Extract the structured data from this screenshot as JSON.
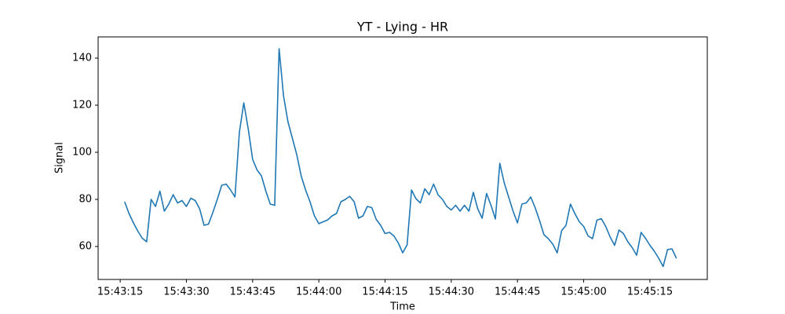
{
  "chart_data": {
    "type": "line",
    "title": "YT - Lying - HR",
    "x_label": "Time",
    "y_label": "Signal",
    "x": [
      "15:43:16",
      "15:43:17",
      "15:43:18",
      "15:43:19",
      "15:43:20",
      "15:43:21",
      "15:43:22",
      "15:43:23",
      "15:43:24",
      "15:43:25",
      "15:43:26",
      "15:43:27",
      "15:43:28",
      "15:43:29",
      "15:43:30",
      "15:43:31",
      "15:43:32",
      "15:43:33",
      "15:43:34",
      "15:43:35",
      "15:43:36",
      "15:43:37",
      "15:43:38",
      "15:43:39",
      "15:43:40",
      "15:43:41",
      "15:43:42",
      "15:43:43",
      "15:43:44",
      "15:43:45",
      "15:43:46",
      "15:43:47",
      "15:43:48",
      "15:43:49",
      "15:43:50",
      "15:43:51",
      "15:43:52",
      "15:43:53",
      "15:43:54",
      "15:43:55",
      "15:43:56",
      "15:43:57",
      "15:43:58",
      "15:43:59",
      "15:44:00",
      "15:44:01",
      "15:44:02",
      "15:44:03",
      "15:44:04",
      "15:44:05",
      "15:44:06",
      "15:44:07",
      "15:44:08",
      "15:44:09",
      "15:44:10",
      "15:44:11",
      "15:44:12",
      "15:44:13",
      "15:44:14",
      "15:44:15",
      "15:44:16",
      "15:44:17",
      "15:44:18",
      "15:44:19",
      "15:44:20",
      "15:44:21",
      "15:44:22",
      "15:44:23",
      "15:44:24",
      "15:44:25",
      "15:44:26",
      "15:44:27",
      "15:44:28",
      "15:44:29",
      "15:44:30",
      "15:44:31",
      "15:44:32",
      "15:44:33",
      "15:44:34",
      "15:44:35",
      "15:44:36",
      "15:44:37",
      "15:44:38",
      "15:44:39",
      "15:44:40",
      "15:44:41",
      "15:44:42",
      "15:44:43",
      "15:44:44",
      "15:44:45",
      "15:44:46",
      "15:44:47",
      "15:44:48",
      "15:44:49",
      "15:44:50",
      "15:44:51",
      "15:44:52",
      "15:44:53",
      "15:44:54",
      "15:44:55",
      "15:44:56",
      "15:44:57",
      "15:44:58",
      "15:44:59",
      "15:45:00",
      "15:45:01",
      "15:45:02",
      "15:45:03",
      "15:45:04",
      "15:45:05",
      "15:45:06",
      "15:45:07",
      "15:45:08",
      "15:45:09",
      "15:45:10",
      "15:45:11",
      "15:45:12",
      "15:45:13",
      "15:45:14",
      "15:45:15",
      "15:45:16",
      "15:45:17",
      "15:45:18",
      "15:45:19",
      "15:45:20",
      "15:45:21"
    ],
    "series": [
      {
        "name": "HR",
        "color": "#1f77b4",
        "values": [
          79,
          74,
          70,
          66.5,
          63.5,
          62,
          80,
          77,
          83.5,
          75,
          78,
          82,
          78.5,
          79.5,
          77,
          80.5,
          79.5,
          76,
          69,
          69.5,
          74.5,
          80,
          86,
          86.5,
          84,
          81,
          108.5,
          121,
          110,
          97,
          92.5,
          90,
          83.5,
          78,
          77.5,
          144,
          124,
          113,
          106,
          99,
          90,
          84,
          79,
          73,
          69.7,
          70.5,
          71.3,
          73,
          74,
          79,
          80,
          81.3,
          79,
          72,
          73,
          77,
          76.5,
          71.5,
          69,
          65.5,
          66,
          64.5,
          61.5,
          57.3,
          60.7,
          84,
          80.3,
          78.5,
          84.5,
          82,
          86.5,
          82,
          80,
          77,
          75.5,
          77.5,
          75,
          77.5,
          75,
          83,
          76,
          72,
          82.5,
          77.5,
          71.7,
          95.3,
          87,
          81,
          75,
          70,
          78,
          78.5,
          81,
          76.5,
          71,
          65,
          63.3,
          61,
          57.3,
          66.7,
          69,
          78,
          74,
          70.5,
          68.5,
          64.5,
          63.3,
          71.2,
          71.8,
          68.5,
          64,
          60.5,
          67,
          65.5,
          62,
          59.5,
          56.3,
          66,
          63.5,
          60.5,
          58,
          55,
          51.5,
          58.7,
          59,
          55
        ]
      }
    ],
    "xlim": [
      "15:43:10",
      "15:45:28"
    ],
    "xticks": [
      "15:43:15",
      "15:43:30",
      "15:43:45",
      "15:44:00",
      "15:44:15",
      "15:44:30",
      "15:44:45",
      "15:45:00",
      "15:45:15"
    ],
    "ylim": [
      46,
      149
    ],
    "yticks": [
      60,
      80,
      100,
      120,
      140
    ],
    "grid": false
  }
}
